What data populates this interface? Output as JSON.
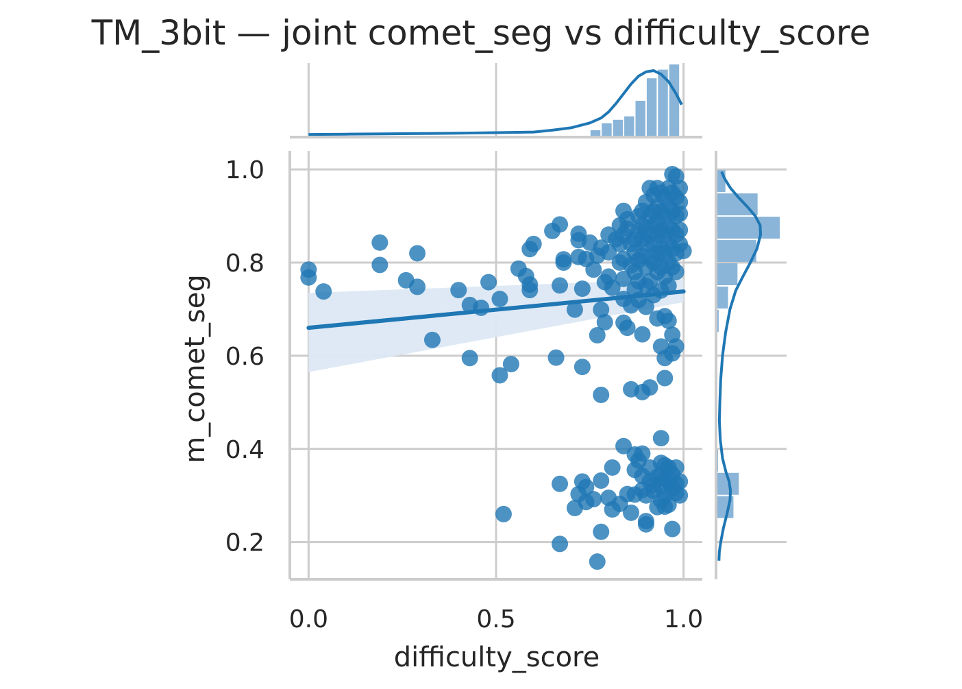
{
  "chart_data": {
    "type": "scatter",
    "title": "TM_3bit — joint comet_seg vs difficulty_score",
    "xlabel": "difficulty_score",
    "ylabel": "m_comet_seg",
    "xlim": [
      -0.05,
      1.05
    ],
    "ylim": [
      0.12,
      1.04
    ],
    "xticks": [
      0.0,
      0.5,
      1.0
    ],
    "xtick_labels": [
      "0.0",
      "0.5",
      "1.0"
    ],
    "yticks": [
      0.2,
      0.4,
      0.6,
      0.8,
      1.0
    ],
    "ytick_labels": [
      "0.2",
      "0.4",
      "0.6",
      "0.8",
      "1.0"
    ],
    "grid": true,
    "colors": {
      "points": "#1f77b4",
      "hist": "#8ab5d8",
      "band": "#dce8f4",
      "grid": "#cccccc",
      "spine": "#cccccc"
    },
    "regression": {
      "x": [
        0.0,
        1.0
      ],
      "y": [
        0.66,
        0.738
      ],
      "ci_left": [
        0.565,
        0.735
      ],
      "ci_right": [
        0.715,
        0.765
      ]
    },
    "points": [
      [
        0.0,
        0.785
      ],
      [
        0.0,
        0.768
      ],
      [
        0.04,
        0.738
      ],
      [
        0.19,
        0.843
      ],
      [
        0.19,
        0.795
      ],
      [
        0.26,
        0.762
      ],
      [
        0.29,
        0.82
      ],
      [
        0.29,
        0.748
      ],
      [
        0.33,
        0.634
      ],
      [
        0.4,
        0.741
      ],
      [
        0.43,
        0.595
      ],
      [
        0.43,
        0.709
      ],
      [
        0.46,
        0.703
      ],
      [
        0.48,
        0.758
      ],
      [
        0.51,
        0.722
      ],
      [
        0.51,
        0.558
      ],
      [
        0.54,
        0.582
      ],
      [
        0.56,
        0.787
      ],
      [
        0.58,
        0.771
      ],
      [
        0.59,
        0.741
      ],
      [
        0.59,
        0.753
      ],
      [
        0.59,
        0.829
      ],
      [
        0.6,
        0.84
      ],
      [
        0.65,
        0.868
      ],
      [
        0.66,
        0.596
      ],
      [
        0.67,
        0.882
      ],
      [
        0.67,
        0.751
      ],
      [
        0.68,
        0.807
      ],
      [
        0.68,
        0.8
      ],
      [
        0.71,
        0.699
      ],
      [
        0.72,
        0.848
      ],
      [
        0.72,
        0.862
      ],
      [
        0.72,
        0.812
      ],
      [
        0.73,
        0.576
      ],
      [
        0.73,
        0.744
      ],
      [
        0.74,
        0.808
      ],
      [
        0.75,
        0.843
      ],
      [
        0.76,
        0.785
      ],
      [
        0.77,
        0.644
      ],
      [
        0.77,
        0.815
      ],
      [
        0.78,
        0.832
      ],
      [
        0.78,
        0.699
      ],
      [
        0.78,
        0.516
      ],
      [
        0.79,
        0.758
      ],
      [
        0.79,
        0.672
      ],
      [
        0.8,
        0.86
      ],
      [
        0.8,
        0.822
      ],
      [
        0.8,
        0.77
      ],
      [
        0.81,
        0.746
      ],
      [
        0.82,
        0.85
      ],
      [
        0.83,
        0.88
      ],
      [
        0.83,
        0.84
      ],
      [
        0.83,
        0.8
      ],
      [
        0.84,
        0.911
      ],
      [
        0.84,
        0.86
      ],
      [
        0.84,
        0.808
      ],
      [
        0.84,
        0.765
      ],
      [
        0.84,
        0.722
      ],
      [
        0.84,
        0.671
      ],
      [
        0.85,
        0.66
      ],
      [
        0.85,
        0.893
      ],
      [
        0.85,
        0.873
      ],
      [
        0.86,
        0.84
      ],
      [
        0.86,
        0.794
      ],
      [
        0.86,
        0.708
      ],
      [
        0.86,
        0.528
      ],
      [
        0.87,
        0.85
      ],
      [
        0.87,
        0.822
      ],
      [
        0.87,
        0.78
      ],
      [
        0.87,
        0.742
      ],
      [
        0.88,
        0.9
      ],
      [
        0.88,
        0.868
      ],
      [
        0.88,
        0.805
      ],
      [
        0.88,
        0.76
      ],
      [
        0.88,
        0.72
      ],
      [
        0.89,
        0.911
      ],
      [
        0.89,
        0.88
      ],
      [
        0.89,
        0.85
      ],
      [
        0.89,
        0.815
      ],
      [
        0.89,
        0.646
      ],
      [
        0.89,
        0.522
      ],
      [
        0.9,
        0.93
      ],
      [
        0.9,
        0.87
      ],
      [
        0.9,
        0.84
      ],
      [
        0.9,
        0.79
      ],
      [
        0.9,
        0.75
      ],
      [
        0.9,
        0.705
      ],
      [
        0.91,
        0.96
      ],
      [
        0.91,
        0.9
      ],
      [
        0.91,
        0.86
      ],
      [
        0.91,
        0.81
      ],
      [
        0.91,
        0.76
      ],
      [
        0.91,
        0.532
      ],
      [
        0.92,
        0.945
      ],
      [
        0.92,
        0.91
      ],
      [
        0.92,
        0.88
      ],
      [
        0.92,
        0.84
      ],
      [
        0.92,
        0.8
      ],
      [
        0.92,
        0.73
      ],
      [
        0.93,
        0.96
      ],
      [
        0.93,
        0.92
      ],
      [
        0.93,
        0.89
      ],
      [
        0.93,
        0.86
      ],
      [
        0.93,
        0.82
      ],
      [
        0.93,
        0.78
      ],
      [
        0.93,
        0.68
      ],
      [
        0.94,
        0.95
      ],
      [
        0.94,
        0.91
      ],
      [
        0.94,
        0.87
      ],
      [
        0.94,
        0.83
      ],
      [
        0.94,
        0.79
      ],
      [
        0.94,
        0.74
      ],
      [
        0.94,
        0.62
      ],
      [
        0.95,
        0.94
      ],
      [
        0.95,
        0.9
      ],
      [
        0.95,
        0.86
      ],
      [
        0.95,
        0.82
      ],
      [
        0.95,
        0.77
      ],
      [
        0.95,
        0.685
      ],
      [
        0.95,
        0.595
      ],
      [
        0.95,
        0.552
      ],
      [
        0.96,
        0.96
      ],
      [
        0.96,
        0.92
      ],
      [
        0.96,
        0.88
      ],
      [
        0.96,
        0.84
      ],
      [
        0.96,
        0.8
      ],
      [
        0.96,
        0.75
      ],
      [
        0.96,
        0.675
      ],
      [
        0.97,
        0.99
      ],
      [
        0.97,
        0.95
      ],
      [
        0.97,
        0.91
      ],
      [
        0.97,
        0.87
      ],
      [
        0.97,
        0.83
      ],
      [
        0.97,
        0.79
      ],
      [
        0.97,
        0.645
      ],
      [
        0.97,
        0.605
      ],
      [
        0.98,
        0.985
      ],
      [
        0.98,
        0.94
      ],
      [
        0.98,
        0.9
      ],
      [
        0.98,
        0.86
      ],
      [
        0.98,
        0.82
      ],
      [
        0.98,
        0.78
      ],
      [
        0.98,
        0.62
      ],
      [
        0.99,
        0.96
      ],
      [
        0.99,
        0.93
      ],
      [
        0.99,
        0.905
      ],
      [
        0.99,
        0.87
      ],
      [
        0.99,
        0.84
      ],
      [
        1.0,
        0.825
      ],
      [
        0.52,
        0.26
      ],
      [
        0.67,
        0.196
      ],
      [
        0.67,
        0.325
      ],
      [
        0.71,
        0.273
      ],
      [
        0.72,
        0.303
      ],
      [
        0.73,
        0.33
      ],
      [
        0.74,
        0.318
      ],
      [
        0.74,
        0.286
      ],
      [
        0.76,
        0.292
      ],
      [
        0.77,
        0.158
      ],
      [
        0.78,
        0.222
      ],
      [
        0.78,
        0.332
      ],
      [
        0.8,
        0.295
      ],
      [
        0.81,
        0.36
      ],
      [
        0.81,
        0.27
      ],
      [
        0.83,
        0.282
      ],
      [
        0.84,
        0.406
      ],
      [
        0.85,
        0.303
      ],
      [
        0.86,
        0.263
      ],
      [
        0.87,
        0.388
      ],
      [
        0.87,
        0.355
      ],
      [
        0.87,
        0.302
      ],
      [
        0.88,
        0.375
      ],
      [
        0.89,
        0.39
      ],
      [
        0.89,
        0.342
      ],
      [
        0.89,
        0.312
      ],
      [
        0.9,
        0.245
      ],
      [
        0.9,
        0.238
      ],
      [
        0.9,
        0.3
      ],
      [
        0.91,
        0.33
      ],
      [
        0.91,
        0.36
      ],
      [
        0.92,
        0.322
      ],
      [
        0.92,
        0.31
      ],
      [
        0.93,
        0.34
      ],
      [
        0.93,
        0.275
      ],
      [
        0.94,
        0.423
      ],
      [
        0.94,
        0.37
      ],
      [
        0.94,
        0.345
      ],
      [
        0.94,
        0.32
      ],
      [
        0.94,
        0.29
      ],
      [
        0.95,
        0.365
      ],
      [
        0.95,
        0.335
      ],
      [
        0.95,
        0.3
      ],
      [
        0.95,
        0.276
      ],
      [
        0.96,
        0.36
      ],
      [
        0.96,
        0.33
      ],
      [
        0.96,
        0.28
      ],
      [
        0.97,
        0.345
      ],
      [
        0.97,
        0.315
      ],
      [
        0.97,
        0.228
      ],
      [
        0.98,
        0.36
      ],
      [
        0.98,
        0.325
      ],
      [
        0.98,
        0.305
      ],
      [
        0.99,
        0.33
      ],
      [
        0.99,
        0.3
      ]
    ],
    "x_hist": {
      "bins": [
        [
          0.75,
          0.78
        ],
        [
          0.78,
          0.81
        ],
        [
          0.81,
          0.84
        ],
        [
          0.84,
          0.87
        ],
        [
          0.87,
          0.9
        ],
        [
          0.9,
          0.93
        ],
        [
          0.93,
          0.96
        ],
        [
          0.96,
          0.99
        ]
      ],
      "counts": [
        4,
        8,
        10,
        12,
        21,
        34,
        39,
        42
      ]
    },
    "x_kde": {
      "x": [
        0.0,
        0.1,
        0.2,
        0.3,
        0.4,
        0.5,
        0.6,
        0.65,
        0.7,
        0.75,
        0.78,
        0.8,
        0.82,
        0.84,
        0.86,
        0.88,
        0.9,
        0.92,
        0.94,
        0.96,
        0.98,
        0.995
      ],
      "density": [
        0.01,
        0.015,
        0.02,
        0.025,
        0.03,
        0.04,
        0.05,
        0.08,
        0.12,
        0.2,
        0.28,
        0.38,
        0.52,
        0.68,
        0.84,
        0.97,
        1.04,
        1.06,
        1.0,
        0.88,
        0.68,
        0.5
      ]
    },
    "y_hist": {
      "bins": [
        [
          0.15,
          0.2
        ],
        [
          0.2,
          0.25
        ],
        [
          0.25,
          0.3
        ],
        [
          0.3,
          0.35
        ],
        [
          0.35,
          0.4
        ],
        [
          0.4,
          0.45
        ],
        [
          0.55,
          0.6
        ],
        [
          0.6,
          0.65
        ],
        [
          0.65,
          0.7
        ],
        [
          0.7,
          0.75
        ],
        [
          0.75,
          0.8
        ],
        [
          0.8,
          0.85
        ],
        [
          0.85,
          0.9
        ],
        [
          0.9,
          0.95
        ],
        [
          0.95,
          1.0
        ]
      ],
      "counts": [
        1,
        2,
        26,
        34,
        3,
        1,
        1,
        2,
        4,
        18,
        32,
        60,
        95,
        62,
        14
      ]
    },
    "y_kde": {
      "y": [
        0.16,
        0.18,
        0.2,
        0.23,
        0.26,
        0.29,
        0.31,
        0.33,
        0.35,
        0.38,
        0.42,
        0.46,
        0.5,
        0.55,
        0.6,
        0.65,
        0.7,
        0.74,
        0.77,
        0.8,
        0.83,
        0.86,
        0.88,
        0.9,
        0.92,
        0.94,
        0.96,
        0.98,
        0.995
      ],
      "density": [
        0.02,
        0.03,
        0.06,
        0.12,
        0.2,
        0.27,
        0.28,
        0.25,
        0.18,
        0.1,
        0.05,
        0.03,
        0.04,
        0.06,
        0.1,
        0.17,
        0.27,
        0.4,
        0.56,
        0.73,
        0.88,
        0.96,
        0.95,
        0.84,
        0.66,
        0.46,
        0.28,
        0.15,
        0.08
      ]
    }
  }
}
